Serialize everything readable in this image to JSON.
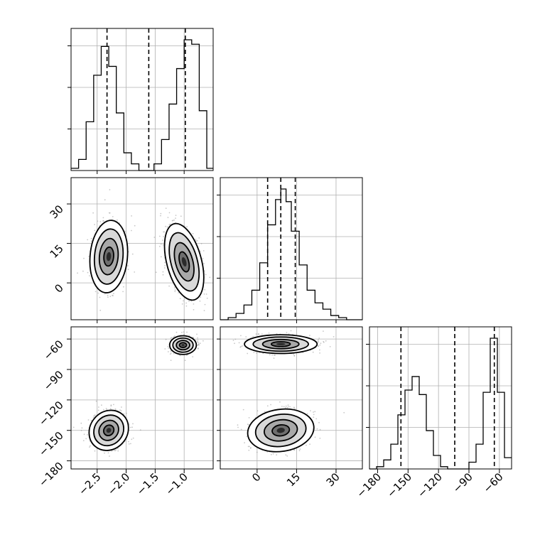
{
  "chart_data": {
    "type": "corner",
    "grid": true,
    "parameters": [
      {
        "ticks": [
          "−2.5",
          "−2.0",
          "−1.5",
          "−1.0"
        ],
        "tick_values": [
          -2.5,
          -2.0,
          -1.5,
          -1.0
        ],
        "range": [
          -2.95,
          -0.5
        ],
        "quantiles": [
          -2.33,
          -1.61,
          -0.98
        ],
        "hist": {
          "edges": [
            -2.95,
            -2.82,
            -2.69,
            -2.56,
            -2.43,
            -2.3,
            -2.17,
            -2.04,
            -1.91,
            -1.78,
            -1.65,
            -1.52,
            -1.39,
            -1.26,
            -1.13,
            -1.0,
            -0.87,
            -0.74,
            -0.61,
            -0.5
          ],
          "counts": [
            1,
            5,
            22,
            43,
            56,
            47,
            26,
            8,
            3,
            0,
            0,
            3,
            14,
            30,
            46,
            59,
            57,
            27,
            1
          ]
        }
      },
      {
        "ticks": [
          "0",
          "15",
          "30"
        ],
        "tick_values": [
          0,
          15,
          30
        ],
        "range": [
          -14,
          40
        ],
        "quantiles": [
          4,
          9,
          14.5
        ],
        "hist": {
          "edges": [
            -14,
            -11,
            -8,
            -5,
            -2,
            1,
            4,
            7,
            9,
            11,
            13,
            16,
            19,
            22,
            25,
            28,
            31,
            34,
            37,
            40
          ],
          "counts": [
            0,
            1,
            3,
            7,
            14,
            27,
            45,
            57,
            62,
            56,
            42,
            26,
            14,
            8,
            5,
            2,
            1,
            0,
            0
          ]
        }
      },
      {
        "ticks": [
          "−180",
          "−150",
          "−120",
          "−90",
          "−60"
        ],
        "tick_values": [
          -180,
          -150,
          -120,
          -90,
          -60
        ],
        "range": [
          -188,
          -48
        ],
        "quantiles": [
          -157,
          -104,
          -65
        ],
        "hist": {
          "edges": [
            -188,
            -181,
            -174,
            -167,
            -160,
            -153,
            -146,
            -139,
            -132,
            -125,
            -118,
            -111,
            -104,
            -97,
            -90,
            -83,
            -76,
            -69,
            -62,
            -55,
            -48
          ],
          "counts": [
            0,
            1,
            4,
            11,
            24,
            35,
            41,
            33,
            17,
            6,
            1,
            0,
            0,
            0,
            3,
            11,
            34,
            58,
            34,
            5
          ]
        }
      }
    ],
    "pairs": [
      {
        "x": 0,
        "y": 1,
        "blobs": [
          {
            "cx": -2.3,
            "cy": 10,
            "sx": 0.14,
            "sy": 6,
            "angle": 5
          },
          {
            "cx": -1.0,
            "cy": 8,
            "sx": 0.13,
            "sy": 6.5,
            "angle": -15
          }
        ]
      },
      {
        "x": 0,
        "y": 2,
        "blobs": [
          {
            "cx": -2.3,
            "cy": -150,
            "sx": 0.14,
            "sy": 9,
            "angle": 40
          },
          {
            "cx": -1.02,
            "cy": -66,
            "sx": 0.1,
            "sy": 4,
            "angle": 0
          }
        ]
      },
      {
        "x": 1,
        "y": 2,
        "blobs": [
          {
            "cx": 9,
            "cy": -65,
            "sx": 6,
            "sy": 4,
            "angle": 0
          },
          {
            "cx": 9,
            "cy": -150,
            "sx": 5.5,
            "sy": 9,
            "angle": -8
          }
        ]
      }
    ]
  }
}
